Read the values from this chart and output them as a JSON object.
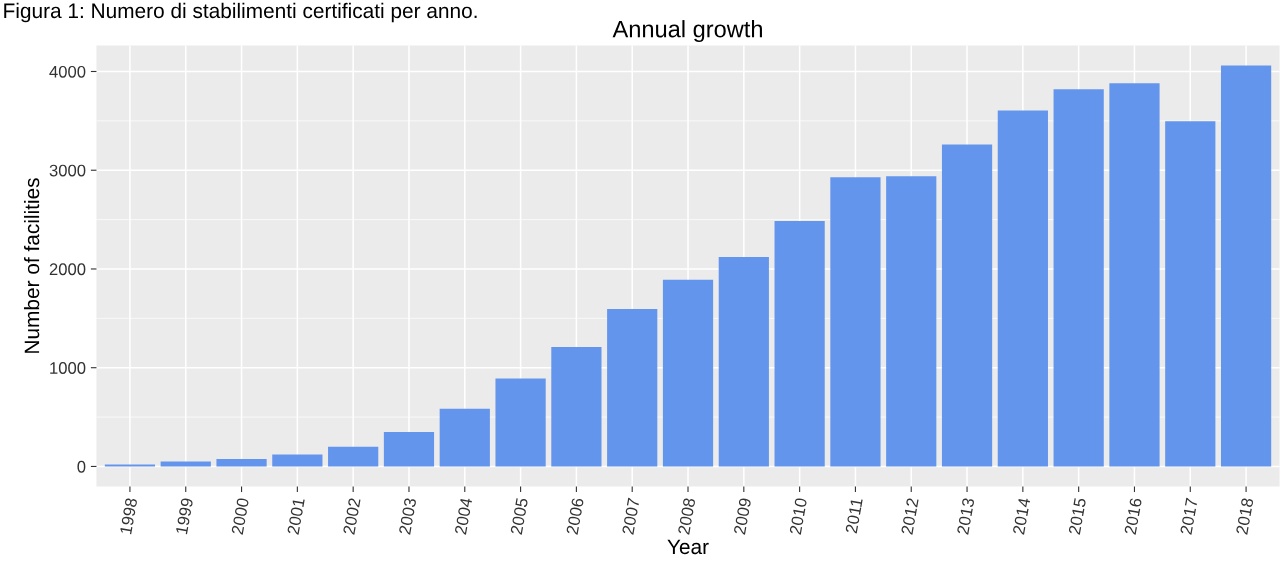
{
  "chart_data": {
    "type": "bar",
    "title": "Annual growth",
    "xlabel": "Year",
    "ylabel": "Number of facilities",
    "annotations": [
      "Figura 1: Numero di stabilimenti certificati per anno."
    ],
    "categories": [
      "1998",
      "1999",
      "2000",
      "2001",
      "2002",
      "2003",
      "2004",
      "2005",
      "2006",
      "2007",
      "2008",
      "2009",
      "2010",
      "2011",
      "2012",
      "2013",
      "2014",
      "2015",
      "2016",
      "2017",
      "2018"
    ],
    "values": [
      20,
      50,
      75,
      120,
      200,
      350,
      585,
      890,
      1210,
      1595,
      1890,
      2120,
      2485,
      2930,
      2940,
      3260,
      3605,
      3820,
      3880,
      3495,
      4060
    ],
    "color": "#6495ed",
    "ylim": [
      -203,
      4263
    ],
    "yticks": [
      0,
      1000,
      2000,
      3000,
      4000
    ],
    "grid": true
  }
}
